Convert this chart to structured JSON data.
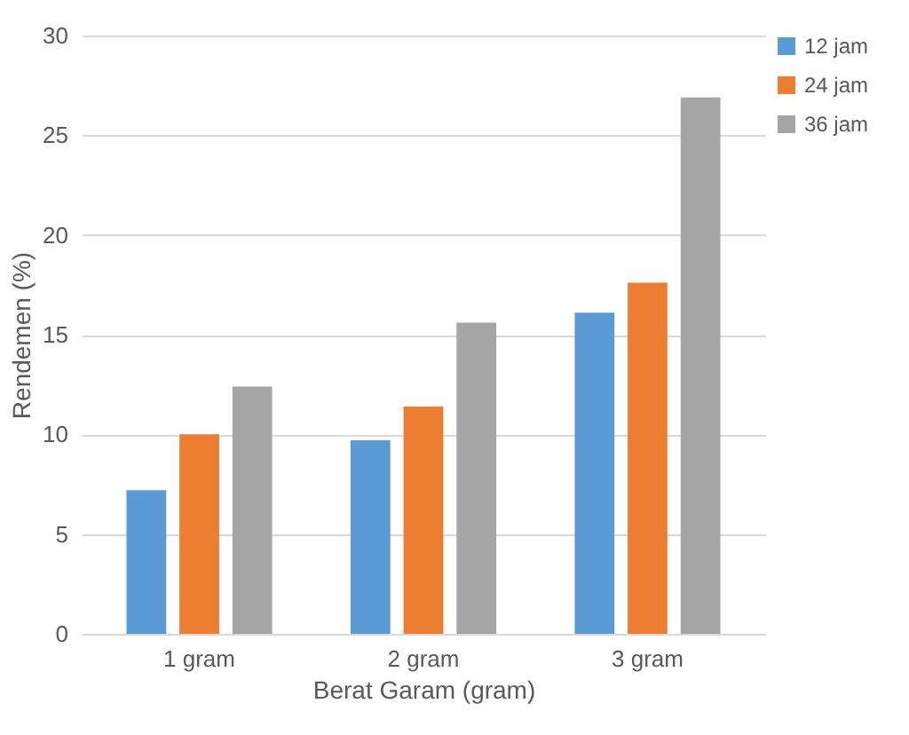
{
  "chart_data": {
    "type": "bar",
    "xlabel": "Berat Garam (gram)",
    "ylabel": "Rendemen (%)",
    "categories": [
      "1 gram",
      "2 gram",
      "3 gram"
    ],
    "series": [
      {
        "name": "12 jam",
        "color": "#5b9bd5",
        "values": [
          7.2,
          9.7,
          16.1
        ]
      },
      {
        "name": "24 jam",
        "color": "#ed7d31",
        "values": [
          10.0,
          11.4,
          17.6
        ]
      },
      {
        "name": "36 jam",
        "color": "#a5a5a5",
        "values": [
          12.4,
          15.6,
          26.9
        ]
      }
    ],
    "ylim": [
      0,
      30
    ],
    "yticks": [
      0,
      5,
      10,
      15,
      20,
      25,
      30
    ],
    "grid": "y",
    "legend": "right"
  }
}
